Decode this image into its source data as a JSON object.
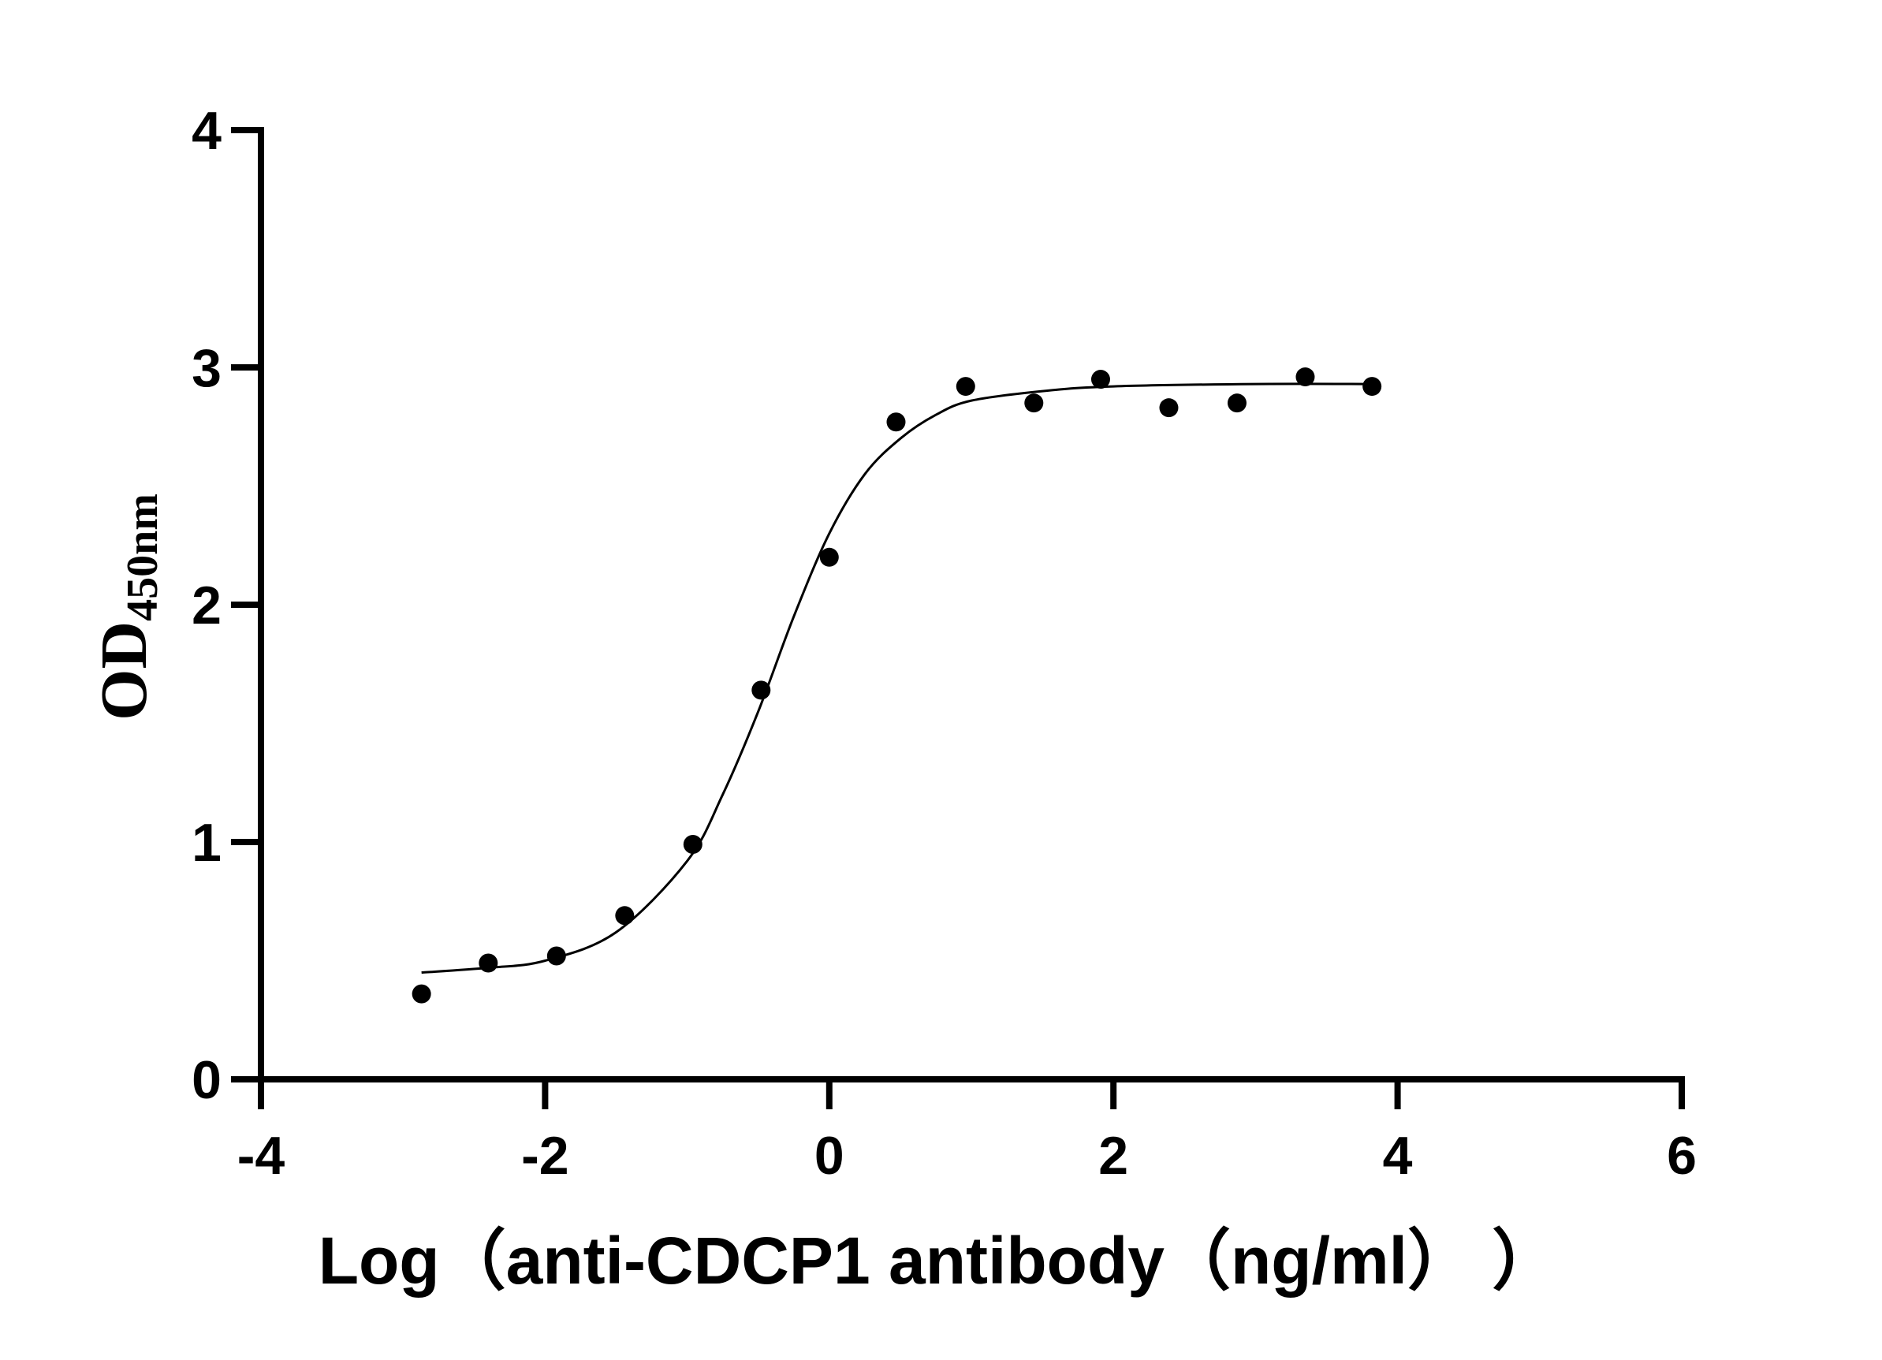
{
  "chart_data": {
    "type": "scatter",
    "xlabel": "Log（anti-CDCP1 antibody（ng/ml）  ）",
    "ylabel": {
      "main": "OD",
      "sub": "450nm"
    },
    "xlim": [
      -4,
      6
    ],
    "xticks": [
      -4,
      -2,
      0,
      2,
      4,
      6
    ],
    "ylim": [
      0,
      4
    ],
    "yticks": [
      0,
      1,
      2,
      3,
      4
    ],
    "color": "#000000",
    "x": [
      -2.87,
      -2.4,
      -1.92,
      -1.44,
      -0.96,
      -0.48,
      0.0,
      0.47,
      0.96,
      1.44,
      1.91,
      2.39,
      2.87,
      3.35,
      3.82
    ],
    "values": [
      0.36,
      0.49,
      0.52,
      0.69,
      0.99,
      1.64,
      2.2,
      2.77,
      2.92,
      2.85,
      2.95,
      2.83,
      2.85,
      2.96,
      2.92
    ],
    "fit": {
      "x": [
        -2.87,
        -2.4,
        -2.0,
        -1.5,
        -1.0,
        -0.75,
        -0.5,
        -0.25,
        0.0,
        0.25,
        0.5,
        0.75,
        1.0,
        1.5,
        2.0,
        3.0,
        3.82
      ],
      "values": [
        0.45,
        0.47,
        0.5,
        0.62,
        0.92,
        1.2,
        1.55,
        1.95,
        2.3,
        2.55,
        2.7,
        2.8,
        2.86,
        2.9,
        2.92,
        2.93,
        2.93
      ]
    }
  }
}
